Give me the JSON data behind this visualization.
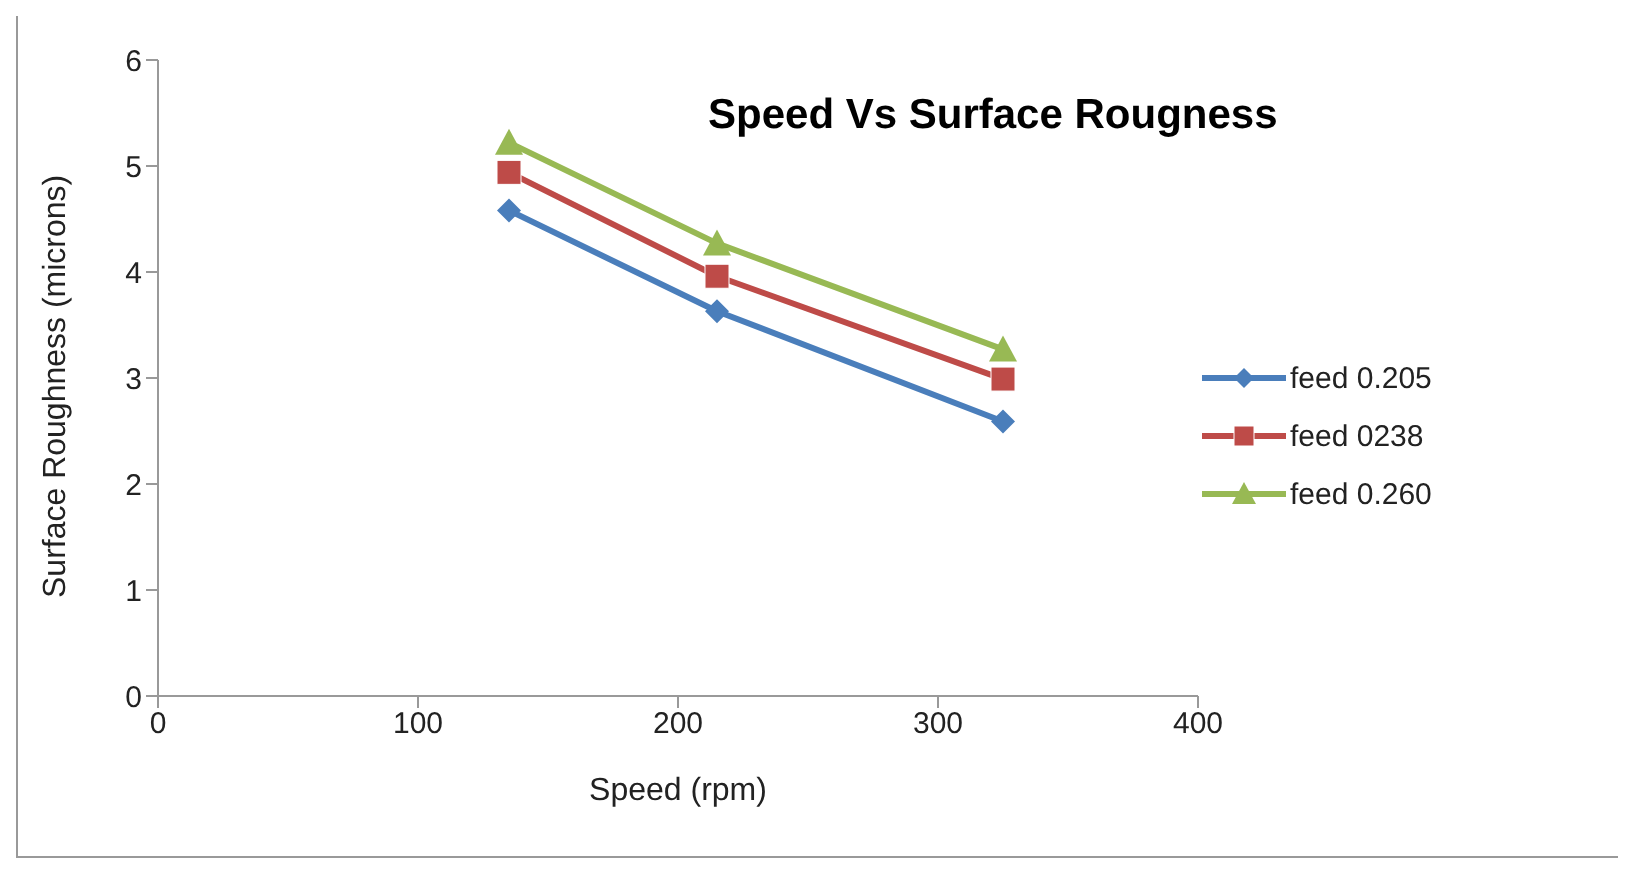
{
  "chart_data": {
    "type": "line",
    "title": "Speed Vs Surface Rougness",
    "xlabel": "Speed (rpm)",
    "ylabel": "Surface Roughness (microns)",
    "xlim": [
      0,
      400
    ],
    "xticks": [
      0,
      100,
      200,
      300,
      400
    ],
    "ylim": [
      0,
      6
    ],
    "yticks": [
      0,
      1,
      2,
      3,
      4,
      5,
      6
    ],
    "grid": false,
    "legend": "right",
    "x": [
      135,
      215,
      325
    ],
    "series": [
      {
        "name": "feed 0.205",
        "color": "#4a7ebb",
        "marker": "diamond",
        "values": [
          4.58,
          3.63,
          2.59
        ]
      },
      {
        "name": "feed 0238",
        "color": "#be4b48",
        "marker": "square",
        "values": [
          4.94,
          3.96,
          2.99
        ]
      },
      {
        "name": "feed 0.260",
        "color": "#98b954",
        "marker": "triangle",
        "values": [
          5.22,
          4.27,
          3.27
        ]
      }
    ]
  }
}
